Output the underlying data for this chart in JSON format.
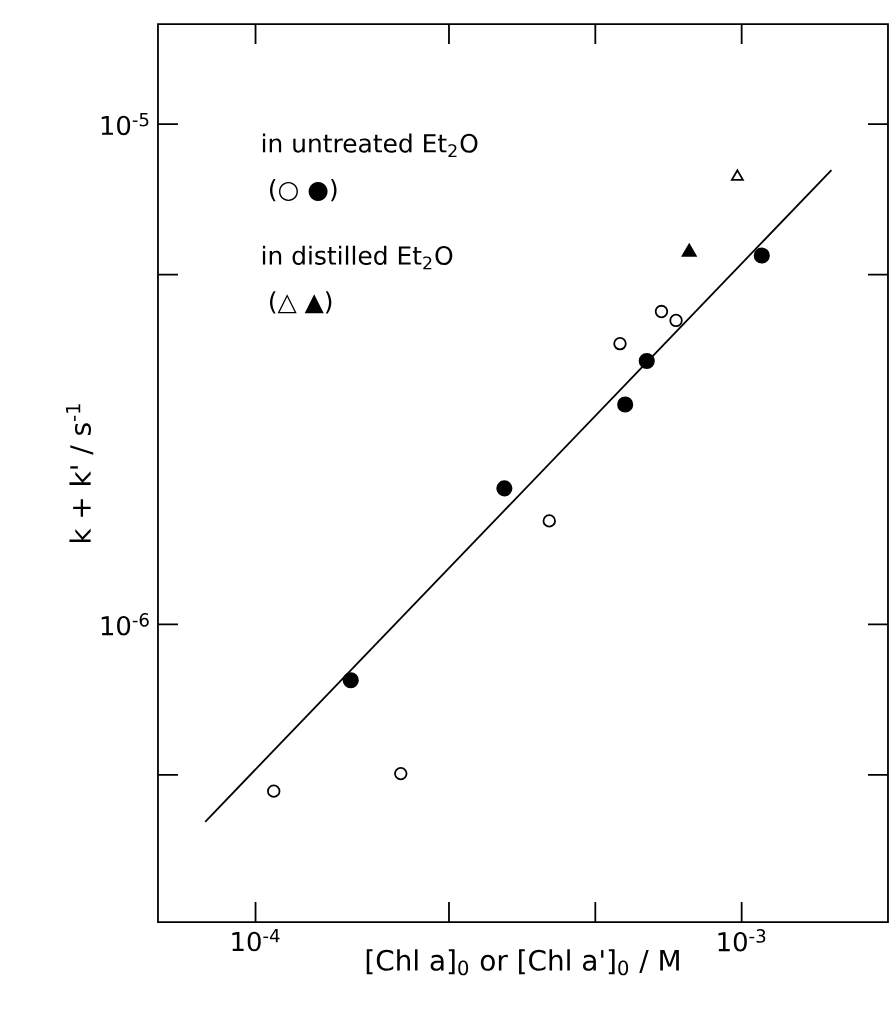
{
  "chart_data": {
    "type": "scatter",
    "xlabel": "[Chl a]$_{0}$ or [Chl a']$_{0}$ / M",
    "ylabel": "k + k' / s$^{-1}$",
    "log": "xy",
    "xlim": [
      6.3e-05,
      0.002
    ],
    "ylim": [
      2.54e-07,
      1.585e-05
    ],
    "xticks": [
      {
        "value": 0.0001,
        "label": "10$^{-4}$"
      },
      {
        "value": 0.00025,
        "label": null
      },
      {
        "value": 0.0005,
        "label": null
      },
      {
        "value": 0.001,
        "label": "10$^{-3}$"
      }
    ],
    "yticks": [
      {
        "value": 5e-07,
        "label": null
      },
      {
        "value": 1e-06,
        "label": "10$^{-6}$"
      },
      {
        "value": 5e-06,
        "label": null
      },
      {
        "value": 1e-05,
        "label": "10$^{-5}$"
      }
    ],
    "annotations": [
      "in untreated Et$_{2}$O",
      "(○ ●)",
      "in distilled Et$_{2}$O",
      "(△ ▲)"
    ],
    "series": [
      {
        "marker": "circle",
        "color": "#ffffff",
        "x": [
          0.000109,
          0.000199,
          0.000402,
          0.000562,
          0.000684,
          0.000733
        ],
        "values": [
          4.64e-07,
          5.03e-07,
          1.61e-06,
          3.64e-06,
          4.22e-06,
          4.05e-06
        ]
      },
      {
        "marker": "circle",
        "color": "#000000",
        "x": [
          0.000157,
          0.000325,
          0.000576,
          0.000638,
          0.0011
        ],
        "values": [
          7.73e-07,
          1.87e-06,
          2.75e-06,
          3.36e-06,
          5.46e-06
        ]
      },
      {
        "marker": "triangle",
        "color": "#ffffff",
        "x": [
          0.00098
        ],
        "values": [
          7.85e-06
        ]
      },
      {
        "marker": "triangle",
        "color": "#000000",
        "x": [
          0.00078
        ],
        "values": [
          5.55e-06
        ]
      },
      {
        "type": "line",
        "marker": "none",
        "color": "#000000",
        "x": [
          7.88e-05,
          0.00153
        ],
        "values": [
          4.03e-07,
          8.09e-06
        ]
      }
    ]
  }
}
